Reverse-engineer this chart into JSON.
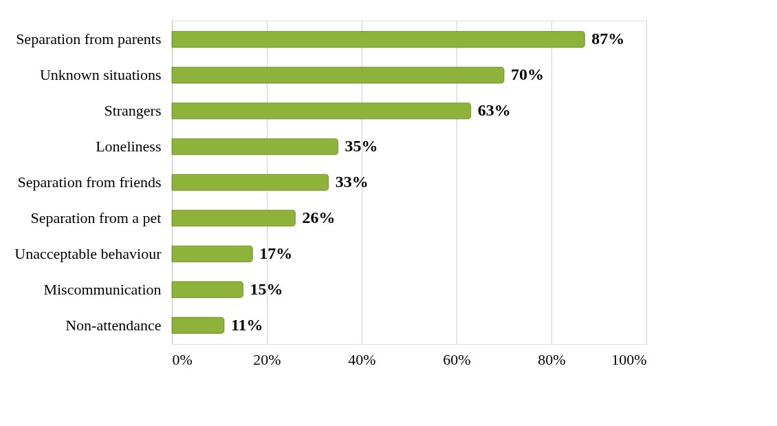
{
  "chart_data": {
    "type": "bar",
    "orientation": "horizontal",
    "categories": [
      "Separation from parents",
      "Unknown situations",
      "Strangers",
      "Loneliness",
      "Separation from friends",
      "Separation from a pet",
      "Unacceptable behaviour",
      "Miscommunication",
      "Non-attendance"
    ],
    "values": [
      87,
      70,
      63,
      35,
      33,
      26,
      17,
      15,
      11
    ],
    "value_labels": [
      "87%",
      "70%",
      "63%",
      "35%",
      "33%",
      "26%",
      "17%",
      "15%",
      "11%"
    ],
    "color": "#8db33a",
    "xlim": [
      0,
      100
    ],
    "xticks": [
      {
        "value": 0,
        "label": "0%"
      },
      {
        "value": 20,
        "label": "20%"
      },
      {
        "value": 40,
        "label": "40%"
      },
      {
        "value": 60,
        "label": "60%"
      },
      {
        "value": 80,
        "label": "80%"
      },
      {
        "value": 100,
        "label": "100%"
      }
    ],
    "grid": "x"
  }
}
